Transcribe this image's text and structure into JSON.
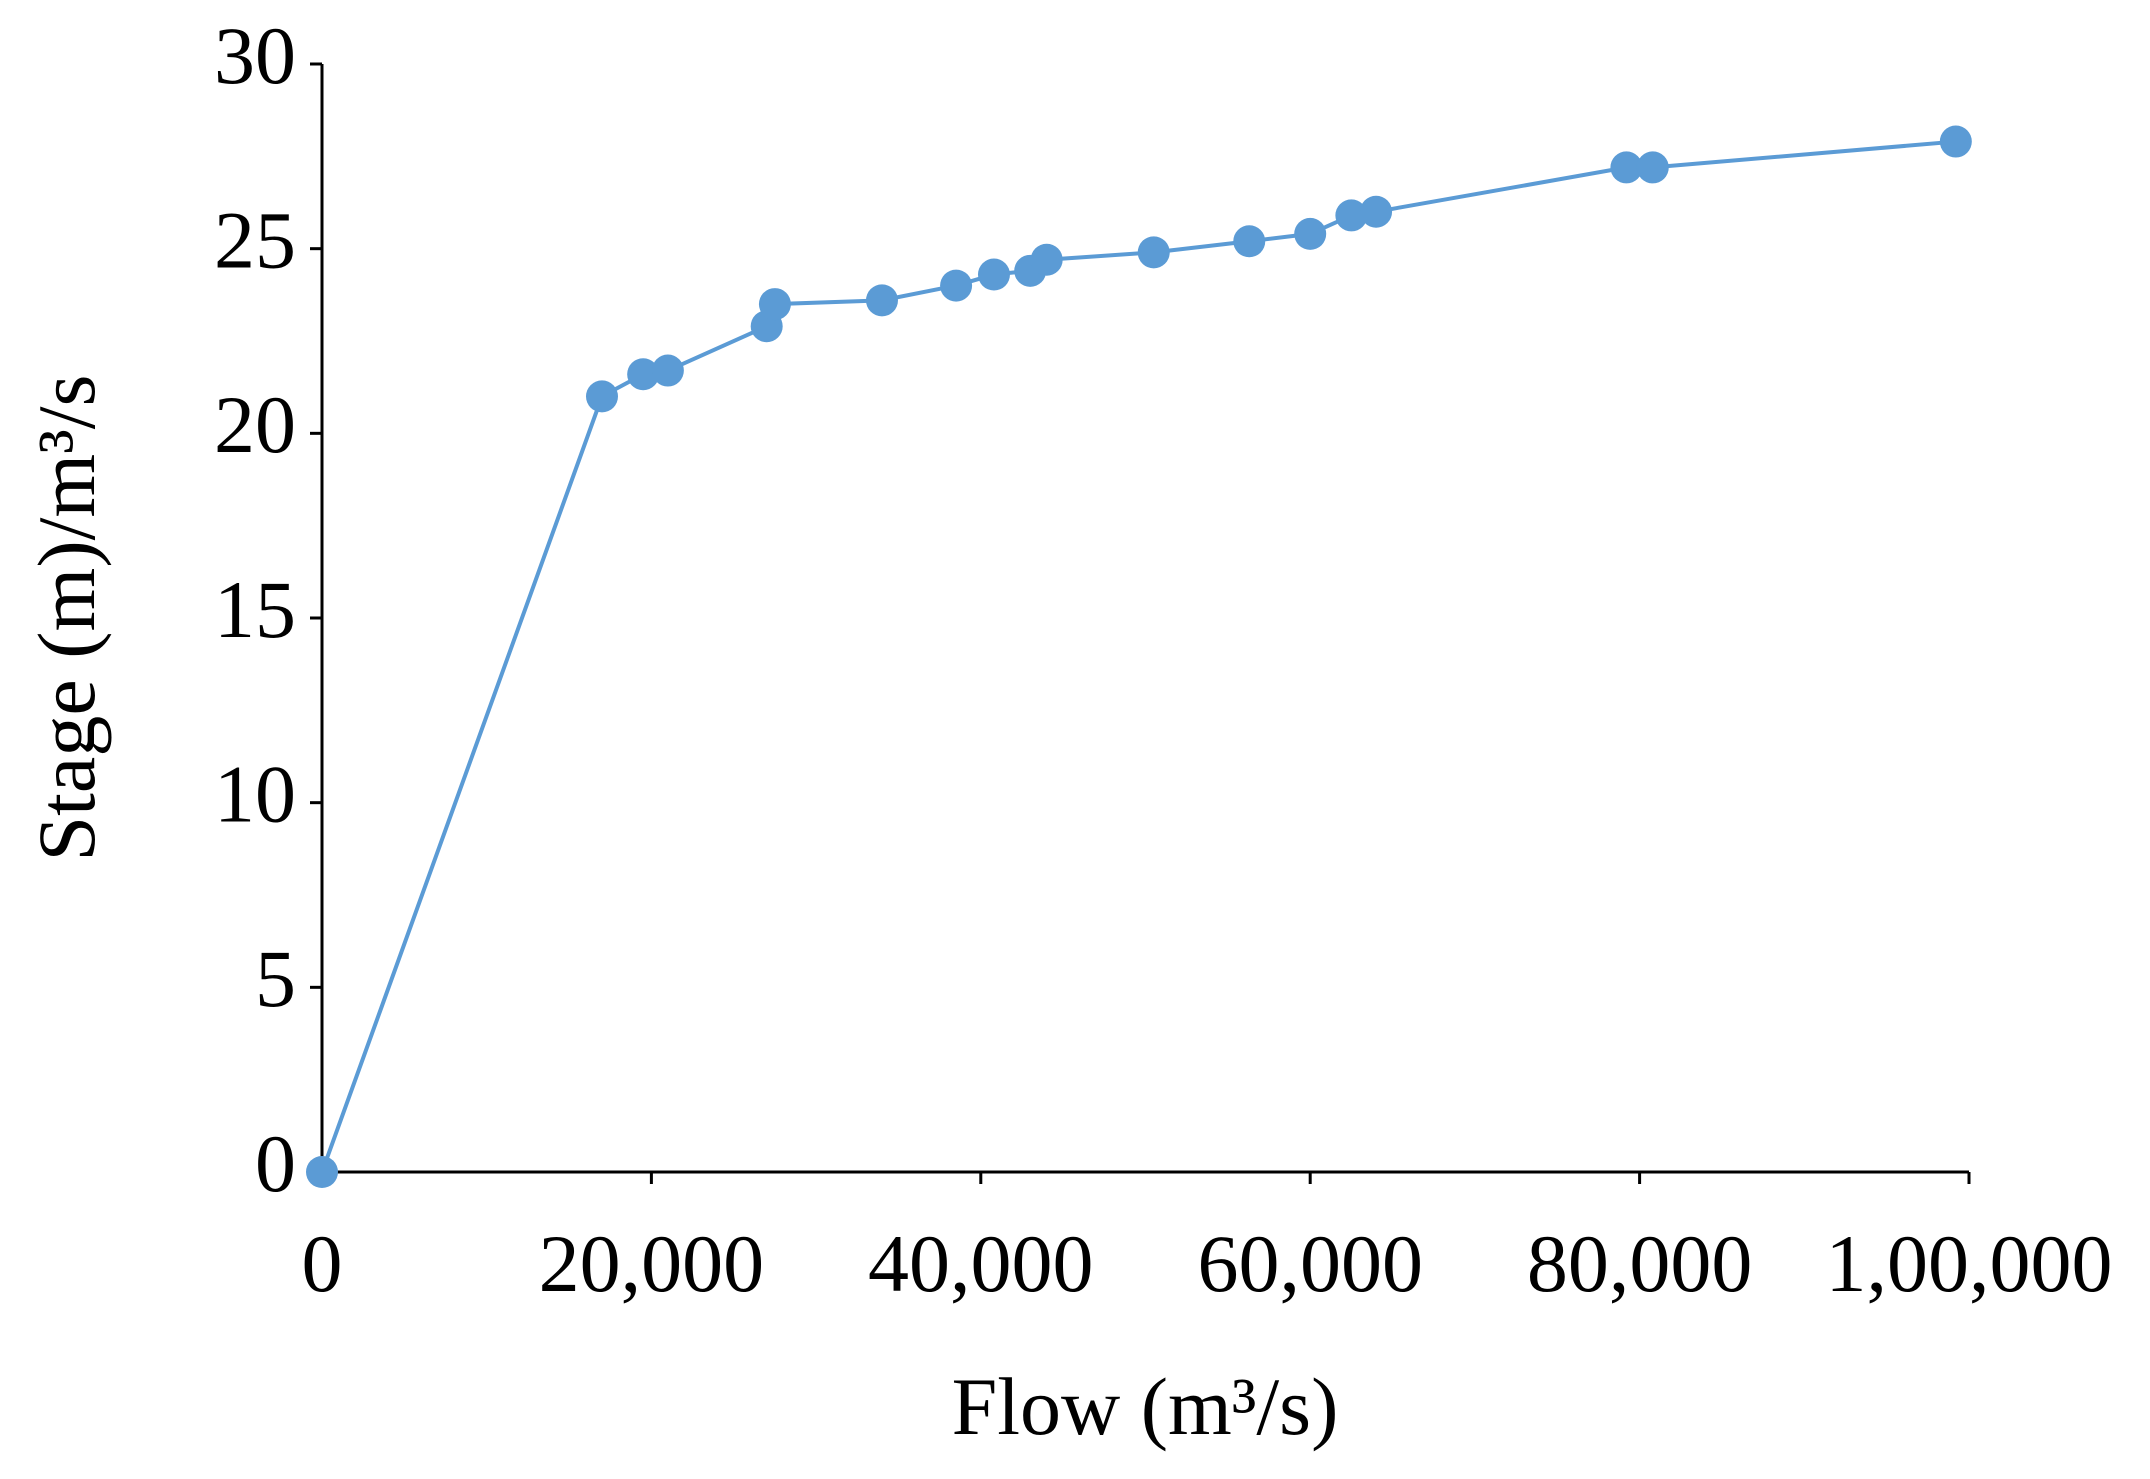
{
  "chart_data": {
    "type": "line",
    "x_label": "Flow (m³/s)",
    "y_label": "Stage (m)/m³/s",
    "x": [
      0,
      17000,
      19500,
      21000,
      27000,
      27500,
      34000,
      38500,
      40800,
      43000,
      44000,
      50500,
      56300,
      60000,
      62500,
      64000,
      79200,
      80800,
      99200
    ],
    "series": [
      {
        "color": "#5b9bd5",
        "values": [
          0,
          21.0,
          21.6,
          21.7,
          22.9,
          23.5,
          23.6,
          24.0,
          24.3,
          24.4,
          24.7,
          24.9,
          25.2,
          25.4,
          25.9,
          26.0,
          27.2,
          27.2,
          27.9
        ]
      }
    ],
    "xlim": [
      0,
      100000
    ],
    "xticks": [
      0,
      {
        "value": 20000,
        "label": "20,000"
      },
      {
        "value": 40000,
        "label": "40,000"
      },
      {
        "value": 60000,
        "label": "60,000"
      },
      {
        "value": 80000,
        "label": "80,000"
      },
      {
        "value": 100000,
        "label": "1,00,000"
      }
    ],
    "ylim": [
      0,
      30
    ],
    "yticks": [
      0,
      5,
      10,
      15,
      20,
      25,
      30
    ],
    "grid": false
  }
}
